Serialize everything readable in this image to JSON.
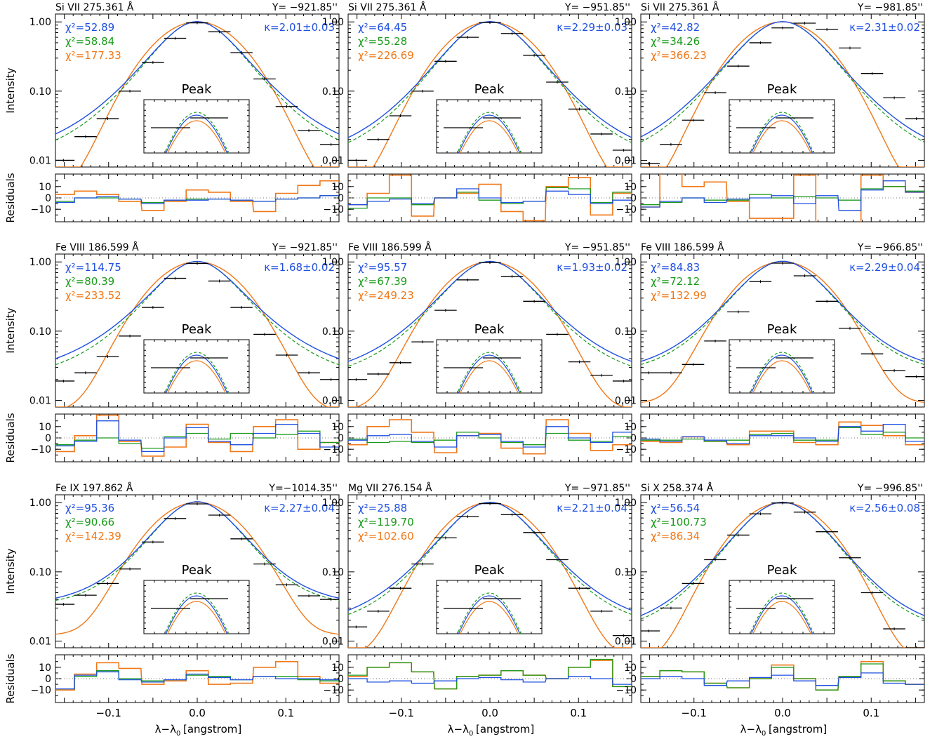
{
  "figure": {
    "ylabel_intensity": "Intensity",
    "ylabel_residuals": "Residuals",
    "xlabel": "λ−λ",
    "xlabel_sub": "0",
    "xlabel_unit": "[angstrom]",
    "inset_label": "Peak",
    "colors": {
      "kappa": "#1f4fe0",
      "gauss2": "#1a9a1a",
      "gauss1": "#f07818",
      "data": "#000000",
      "zero_line": "#777777"
    }
  },
  "chart_data": [
    {
      "type": "line",
      "line": "Si VII 275.361 Å",
      "y_position": "Y= −921.85''",
      "kappa": "κ=2.01±0.03",
      "chi2_kappa": "χ²=52.89",
      "chi2_green": "χ²=58.84",
      "chi2_orange": "χ²=177.33",
      "xlim": [
        -0.16,
        0.16
      ],
      "ylim": [
        0.008,
        1.3
      ],
      "yscale": "log",
      "x_ticks": [
        -0.1,
        0.0,
        0.1
      ],
      "y_ticks": [
        "0.01",
        "0.10",
        "1.00"
      ],
      "residual_ticks": [
        "10",
        "0",
        "−10"
      ],
      "data_x": [
        -0.151,
        -0.126,
        -0.101,
        -0.076,
        -0.05,
        -0.025,
        0.0,
        0.025,
        0.05,
        0.076,
        0.101,
        0.126,
        0.151
      ],
      "data_y": [
        0.01,
        0.022,
        0.04,
        0.1,
        0.26,
        0.58,
        0.97,
        0.72,
        0.36,
        0.15,
        0.06,
        0.027,
        0.017
      ],
      "residual_kappa": [
        -4,
        0,
        1,
        -1,
        -5,
        -2,
        -2,
        -1,
        -2,
        -3,
        -1,
        0,
        2
      ],
      "residual_green": [
        -3,
        0,
        0,
        -1,
        -4,
        -2,
        -1,
        -1,
        -2,
        -3,
        -1,
        0,
        2
      ],
      "residual_orange": [
        3,
        6,
        3,
        -3,
        -11,
        -3,
        7,
        5,
        -3,
        -12,
        4,
        11,
        15
      ]
    },
    {
      "type": "line",
      "line": "Si VII 275.361 Å",
      "y_position": "Y= −951.85''",
      "kappa": "κ=2.29±0.03",
      "chi2_kappa": "χ²=64.45",
      "chi2_green": "χ²=55.28",
      "chi2_orange": "χ²=226.69",
      "xlim": [
        -0.16,
        0.16
      ],
      "ylim": [
        0.008,
        1.3
      ],
      "yscale": "log",
      "x_ticks": [
        -0.1,
        0.0,
        0.1
      ],
      "y_ticks": [
        "0.01",
        "0.10",
        "1.00"
      ],
      "residual_ticks": [
        "10",
        "0",
        "−10"
      ],
      "data_x": [
        -0.151,
        -0.126,
        -0.101,
        -0.076,
        -0.05,
        -0.025,
        0.0,
        0.025,
        0.05,
        0.076,
        0.101,
        0.126,
        0.151
      ],
      "data_y": [
        0.01,
        0.02,
        0.044,
        0.1,
        0.27,
        0.6,
        0.98,
        0.68,
        0.33,
        0.135,
        0.055,
        0.024,
        0.014
      ],
      "residual_kappa": [
        -6,
        -3,
        -1,
        -5,
        0,
        8,
        0,
        -4,
        -3,
        6,
        3,
        -5,
        -2
      ],
      "residual_green": [
        -9,
        0,
        0,
        -6,
        0,
        5,
        -2,
        -5,
        -3,
        9,
        8,
        -4,
        5
      ],
      "residual_orange": [
        -6,
        4,
        20,
        -16,
        0,
        4,
        12,
        -12,
        -20,
        10,
        18,
        -15,
        4
      ]
    },
    {
      "type": "line",
      "line": "Si VII 275.361 Å",
      "y_position": "Y= −981.85''",
      "kappa": "κ=2.31±0.02",
      "chi2_kappa": "χ²=42.82",
      "chi2_green": "χ²=34.26",
      "chi2_orange": "χ²=366.23",
      "xlim": [
        -0.16,
        0.16
      ],
      "ylim": [
        0.008,
        1.3
      ],
      "yscale": "log",
      "x_ticks": [
        -0.1,
        0.0,
        0.1
      ],
      "y_ticks": [
        "0.01",
        "0.10",
        "1.00"
      ],
      "residual_ticks": [
        "10",
        "0",
        "−10"
      ],
      "data_x": [
        -0.151,
        -0.126,
        -0.101,
        -0.076,
        -0.05,
        -0.025,
        0.0,
        0.025,
        0.05,
        0.076,
        0.101,
        0.126,
        0.151
      ],
      "data_y": [
        0.009,
        0.017,
        0.038,
        0.095,
        0.23,
        0.5,
        0.82,
        0.96,
        0.78,
        0.42,
        0.18,
        0.08,
        0.04
      ],
      "residual_kappa": [
        -8,
        -3,
        0,
        -4,
        -1,
        0,
        2,
        -5,
        2,
        -11,
        7,
        15,
        5
      ],
      "residual_green": [
        -6,
        -4,
        0,
        -2,
        -2,
        3,
        0,
        1,
        0,
        -2,
        8,
        10,
        6
      ],
      "residual_orange": [
        -8,
        22,
        10,
        14,
        -3,
        -18,
        -18,
        20,
        -22,
        -24,
        20,
        10,
        5
      ]
    },
    {
      "type": "line",
      "line": "Fe VIII 186.599 Å",
      "y_position": "Y= −921.85''",
      "kappa": "κ=1.68±0.02",
      "chi2_kappa": "χ²=114.75",
      "chi2_green": "χ²=80.39",
      "chi2_orange": "χ²=233.52",
      "xlim": [
        -0.16,
        0.16
      ],
      "ylim": [
        0.008,
        1.3
      ],
      "yscale": "log",
      "x_ticks": [
        -0.1,
        0.0,
        0.1
      ],
      "y_ticks": [
        "0.01",
        "0.10",
        "1.00"
      ],
      "residual_ticks": [
        "10",
        "0",
        "−10"
      ],
      "data_x": [
        -0.151,
        -0.126,
        -0.101,
        -0.076,
        -0.05,
        -0.025,
        0.0,
        0.025,
        0.05,
        0.076,
        0.101,
        0.126,
        0.151
      ],
      "data_y": [
        0.019,
        0.025,
        0.043,
        0.085,
        0.22,
        0.58,
        0.95,
        0.53,
        0.22,
        0.09,
        0.045,
        0.025,
        0.02
      ],
      "residual_kappa": [
        -7,
        -3,
        15,
        -2,
        -12,
        0,
        9,
        -3,
        -6,
        4,
        12,
        4,
        -8
      ],
      "residual_green": [
        -6,
        -2,
        0,
        -5,
        -9,
        1,
        4,
        -1,
        4,
        0,
        3,
        6,
        -4
      ],
      "residual_orange": [
        -12,
        2,
        20,
        -3,
        -16,
        -8,
        12,
        -4,
        -12,
        10,
        16,
        -10,
        -4
      ]
    },
    {
      "type": "line",
      "line": "Fe VIII 186.599 Å",
      "y_position": "Y= −951.85''",
      "kappa": "κ=1.93±0.02",
      "chi2_kappa": "χ²=95.57",
      "chi2_green": "χ²=67.39",
      "chi2_orange": "χ²=249.23",
      "xlim": [
        -0.16,
        0.16
      ],
      "ylim": [
        0.008,
        1.3
      ],
      "yscale": "log",
      "x_ticks": [
        -0.1,
        0.0,
        0.1
      ],
      "y_ticks": [
        "0.01",
        "0.10",
        "1.00"
      ],
      "residual_ticks": [
        "10",
        "0",
        "−10"
      ],
      "data_x": [
        -0.151,
        -0.126,
        -0.101,
        -0.076,
        -0.05,
        -0.025,
        0.0,
        0.025,
        0.05,
        0.076,
        0.101,
        0.126,
        0.151
      ],
      "data_y": [
        0.02,
        0.024,
        0.035,
        0.07,
        0.2,
        0.55,
        0.98,
        0.62,
        0.27,
        0.09,
        0.036,
        0.023,
        0.019
      ],
      "residual_kappa": [
        -2,
        2,
        3,
        -3,
        -8,
        2,
        3,
        -3,
        -8,
        10,
        0,
        -4,
        5
      ],
      "residual_green": [
        -1,
        -4,
        -3,
        -4,
        -2,
        5,
        0,
        -4,
        -6,
        4,
        -2,
        -3,
        1
      ],
      "residual_orange": [
        -6,
        10,
        16,
        5,
        -13,
        2,
        4,
        -9,
        -14,
        16,
        4,
        -11,
        -6
      ]
    },
    {
      "type": "line",
      "line": "Fe VIII 186.599 Å",
      "y_position": "Y= −966.85''",
      "kappa": "κ=2.29±0.04",
      "chi2_kappa": "χ²=84.83",
      "chi2_green": "χ²=72.12",
      "chi2_orange": "χ²=132.99",
      "xlim": [
        -0.16,
        0.16
      ],
      "ylim": [
        0.008,
        1.3
      ],
      "yscale": "log",
      "x_ticks": [
        -0.1,
        0.0,
        0.1
      ],
      "y_ticks": [
        "0.01",
        "0.10",
        "1.00"
      ],
      "residual_ticks": [
        "10",
        "0",
        "−10"
      ],
      "data_x": [
        -0.151,
        -0.126,
        -0.101,
        -0.076,
        -0.05,
        -0.025,
        0.0,
        0.025,
        0.05,
        0.076,
        0.101,
        0.126,
        0.151
      ],
      "data_y": [
        0.025,
        0.025,
        0.033,
        0.072,
        0.19,
        0.52,
        0.96,
        0.63,
        0.27,
        0.11,
        0.047,
        0.027,
        0.022
      ],
      "residual_kappa": [
        -1,
        -3,
        1,
        -2,
        -5,
        2,
        2,
        0,
        -3,
        10,
        6,
        12,
        -3
      ],
      "residual_green": [
        -2,
        -2,
        -1,
        -3,
        -2,
        3,
        4,
        -2,
        -2,
        9,
        3,
        5,
        0
      ],
      "residual_orange": [
        -3,
        -4,
        1,
        -3,
        -6,
        6,
        6,
        -4,
        -6,
        14,
        11,
        2,
        -6
      ]
    },
    {
      "type": "line",
      "line": "Fe IX 197.862 Å",
      "y_position": "Y=−1014.35''",
      "kappa": "κ=2.27±0.04",
      "chi2_kappa": "χ²=95.36",
      "chi2_green": "χ²=90.66",
      "chi2_orange": "χ²=142.39",
      "xlim": [
        -0.16,
        0.16
      ],
      "ylim": [
        0.008,
        1.3
      ],
      "yscale": "log",
      "x_ticks": [
        -0.1,
        0.0,
        0.1
      ],
      "y_ticks": [
        "0.01",
        "0.10",
        "1.00"
      ],
      "residual_ticks": [
        "10",
        "0",
        "−10"
      ],
      "data_x": [
        -0.151,
        -0.126,
        -0.101,
        -0.076,
        -0.05,
        -0.025,
        0.0,
        0.025,
        0.05,
        0.076,
        0.101,
        0.126,
        0.151
      ],
      "data_y": [
        0.034,
        0.046,
        0.068,
        0.11,
        0.27,
        0.59,
        0.96,
        0.66,
        0.3,
        0.13,
        0.065,
        0.045,
        0.04
      ],
      "residual_kappa": [
        -9,
        3,
        6,
        -1,
        -3,
        -1,
        4,
        1,
        -1,
        2,
        0,
        0,
        -1
      ],
      "residual_green": [
        -9,
        2,
        7,
        0,
        -2,
        -1,
        3,
        2,
        -1,
        2,
        2,
        -1,
        -2
      ],
      "residual_orange": [
        -10,
        4,
        14,
        9,
        -5,
        -2,
        7,
        -5,
        -4,
        10,
        15,
        2,
        -4
      ]
    },
    {
      "type": "line",
      "line": "Mg VII 276.154 Å",
      "y_position": "Y= −971.85''",
      "kappa": "κ=2.21±0.04",
      "chi2_kappa": "χ²=25.88",
      "chi2_green": "χ²=119.70",
      "chi2_orange": "χ²=102.60",
      "xlim": [
        -0.16,
        0.16
      ],
      "ylim": [
        0.008,
        1.3
      ],
      "yscale": "log",
      "x_ticks": [
        -0.1,
        0.0,
        0.1
      ],
      "y_ticks": [
        "0.01",
        "0.10",
        "1.00"
      ],
      "residual_ticks": [
        "10",
        "0",
        "−10"
      ],
      "data_x": [
        -0.151,
        -0.126,
        -0.101,
        -0.076,
        -0.05,
        -0.025,
        0.0,
        0.025,
        0.05,
        0.076,
        0.101,
        0.126,
        0.151
      ],
      "data_y": [
        0.016,
        0.027,
        0.058,
        0.13,
        0.31,
        0.63,
        0.97,
        0.67,
        0.37,
        0.15,
        0.058,
        0.027,
        0.012
      ],
      "residual_kappa": [
        0,
        -3,
        -2,
        -4,
        -2,
        0,
        1,
        -1,
        -3,
        0,
        2,
        0,
        -5
      ],
      "residual_green": [
        3,
        10,
        14,
        6,
        -9,
        2,
        3,
        7,
        3,
        0,
        10,
        17,
        -7
      ],
      "residual_orange": [
        2,
        10,
        14,
        6,
        -9,
        2,
        3,
        7,
        3,
        0,
        10,
        16,
        -7
      ]
    },
    {
      "type": "line",
      "line": "Si X 258.374 Å",
      "y_position": "Y= −996.85''",
      "kappa": "κ=2.56±0.08",
      "chi2_kappa": "χ²=56.54",
      "chi2_green": "χ²=100.73",
      "chi2_orange": "χ²=86.34",
      "xlim": [
        -0.16,
        0.16
      ],
      "ylim": [
        0.008,
        1.3
      ],
      "yscale": "log",
      "x_ticks": [
        -0.1,
        0.0,
        0.1
      ],
      "y_ticks": [
        "0.01",
        "0.10",
        "1.00"
      ],
      "residual_ticks": [
        "10",
        "0",
        "−10"
      ],
      "data_x": [
        -0.151,
        -0.126,
        -0.101,
        -0.076,
        -0.05,
        -0.025,
        0.0,
        0.025,
        0.05,
        0.076,
        0.101,
        0.126,
        0.151
      ],
      "data_y": [
        0.014,
        0.03,
        0.068,
        0.15,
        0.34,
        0.69,
        0.99,
        0.73,
        0.38,
        0.16,
        0.05,
        0.015,
        0.008
      ],
      "residual_kappa": [
        0,
        2,
        0,
        -6,
        -2,
        1,
        3,
        -2,
        -6,
        1,
        5,
        -4,
        -5
      ],
      "residual_green": [
        2,
        7,
        6,
        -4,
        -8,
        0,
        10,
        0,
        -10,
        2,
        13,
        -2,
        -5
      ],
      "residual_orange": [
        2,
        7,
        6,
        -4,
        -8,
        0,
        12,
        0,
        -10,
        2,
        15,
        -2,
        -5
      ]
    }
  ]
}
